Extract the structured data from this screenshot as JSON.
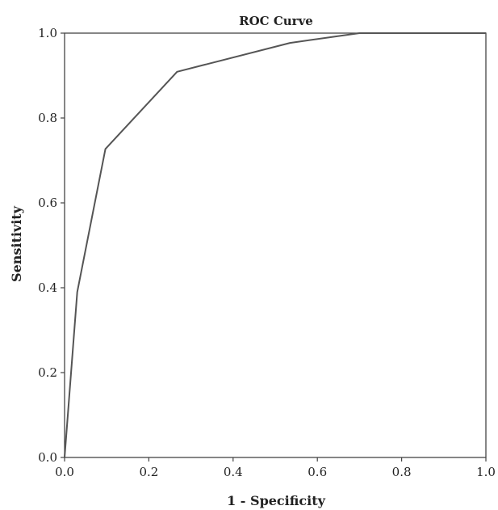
{
  "chart_data": {
    "type": "line",
    "title": "ROC Curve",
    "xlabel": "1 - Specificity",
    "ylabel": "Sensitivity",
    "xlim": [
      0.0,
      1.0
    ],
    "ylim": [
      0.0,
      1.0
    ],
    "x_ticks": [
      "0.0",
      "0.2",
      "0.4",
      "0.6",
      "0.8",
      "1.0"
    ],
    "y_ticks": [
      "0.0",
      "0.2",
      "0.4",
      "0.6",
      "0.8",
      "1.0"
    ],
    "grid": false,
    "series": [
      {
        "x": [
          0.0,
          0.03,
          0.097,
          0.267,
          0.535,
          0.7,
          1.0
        ],
        "y": [
          0.0,
          0.39,
          0.727,
          0.909,
          0.977,
          1.0,
          1.0
        ]
      }
    ],
    "colors": {
      "line": "#555555",
      "axis": "#444444",
      "text": "#222222"
    }
  }
}
